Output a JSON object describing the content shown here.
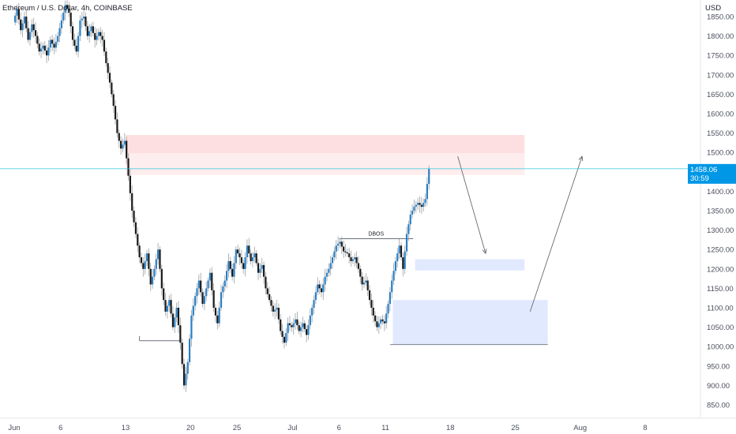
{
  "chart_data": {
    "type": "candlestick",
    "title": "Ethereum / U.S. Dollar, 4h, COINBASE",
    "y_unit": "USD",
    "ylim": [
      825,
      1875
    ],
    "y_ticks": [
      1850,
      1800,
      1750,
      1700,
      1650,
      1600,
      1550,
      1500,
      1450,
      1400,
      1350,
      1300,
      1250,
      1200,
      1150,
      1100,
      1050,
      1000,
      950,
      900,
      850
    ],
    "y_tick_labels": [
      "1850.00",
      "1800.00",
      "1750.00",
      "1700.00",
      "1650.00",
      "1600.00",
      "1550.00",
      "1500.00",
      "1450.00",
      "1400.00",
      "1350.00",
      "1300.00",
      "1250.00",
      "1200.00",
      "1150.00",
      "1100.00",
      "1050.00",
      "1000.00",
      "950.00",
      "900.00",
      "850.00"
    ],
    "x_ticks": [
      {
        "label": "Jun",
        "day": 0
      },
      {
        "label": "6",
        "day": 5
      },
      {
        "label": "13",
        "day": 12
      },
      {
        "label": "20",
        "day": 19
      },
      {
        "label": "25",
        "day": 24
      },
      {
        "label": "Jul",
        "day": 30
      },
      {
        "label": "6",
        "day": 35
      },
      {
        "label": "11",
        "day": 40
      },
      {
        "label": "18",
        "day": 47
      },
      {
        "label": "25",
        "day": 54
      },
      {
        "label": "Aug",
        "day": 61
      },
      {
        "label": "8",
        "day": 68
      }
    ],
    "last_price": {
      "value": "1458.06",
      "countdown": "30:59",
      "price": 1458.06
    },
    "colors": {
      "up": "#2a7fc4",
      "down": "#1a1a1a",
      "wick": "#9aa0a6",
      "price_line": "#26c6da",
      "price_tag": "#0097e6"
    },
    "price_path": [
      [
        0.0,
        1835
      ],
      [
        0.4,
        1870
      ],
      [
        0.8,
        1815
      ],
      [
        1.2,
        1850
      ],
      [
        1.6,
        1790
      ],
      [
        2.0,
        1830
      ],
      [
        2.4,
        1800
      ],
      [
        2.8,
        1760
      ],
      [
        3.2,
        1775
      ],
      [
        3.6,
        1750
      ],
      [
        4.0,
        1790
      ],
      [
        4.4,
        1770
      ],
      [
        4.8,
        1800
      ],
      [
        5.2,
        1840
      ],
      [
        5.6,
        1880
      ],
      [
        6.0,
        1860
      ],
      [
        6.4,
        1790
      ],
      [
        6.8,
        1760
      ],
      [
        7.2,
        1840
      ],
      [
        7.6,
        1850
      ],
      [
        8.0,
        1800
      ],
      [
        8.4,
        1825
      ],
      [
        8.8,
        1790
      ],
      [
        9.2,
        1810
      ],
      [
        9.6,
        1790
      ],
      [
        10.0,
        1730
      ],
      [
        10.4,
        1680
      ],
      [
        10.8,
        1620
      ],
      [
        11.2,
        1550
      ],
      [
        11.6,
        1510
      ],
      [
        12.0,
        1530
      ],
      [
        12.4,
        1440
      ],
      [
        12.8,
        1350
      ],
      [
        13.2,
        1290
      ],
      [
        13.6,
        1230
      ],
      [
        14.0,
        1200
      ],
      [
        14.4,
        1240
      ],
      [
        14.8,
        1160
      ],
      [
        15.2,
        1200
      ],
      [
        15.6,
        1250
      ],
      [
        16.0,
        1150
      ],
      [
        16.4,
        1090
      ],
      [
        16.8,
        1120
      ],
      [
        17.2,
        1050
      ],
      [
        17.6,
        1100
      ],
      [
        18.0,
        1010
      ],
      [
        18.4,
        900
      ],
      [
        18.8,
        960
      ],
      [
        19.2,
        1080
      ],
      [
        19.6,
        1130
      ],
      [
        20.0,
        1170
      ],
      [
        20.4,
        1110
      ],
      [
        20.8,
        1150
      ],
      [
        21.2,
        1190
      ],
      [
        21.6,
        1100
      ],
      [
        22.0,
        1060
      ],
      [
        22.4,
        1140
      ],
      [
        22.8,
        1170
      ],
      [
        23.2,
        1220
      ],
      [
        23.6,
        1180
      ],
      [
        24.0,
        1250
      ],
      [
        24.4,
        1230
      ],
      [
        24.8,
        1200
      ],
      [
        25.2,
        1260
      ],
      [
        25.6,
        1220
      ],
      [
        26.0,
        1240
      ],
      [
        26.4,
        1190
      ],
      [
        26.8,
        1210
      ],
      [
        27.2,
        1150
      ],
      [
        27.6,
        1120
      ],
      [
        28.0,
        1090
      ],
      [
        28.4,
        1100
      ],
      [
        28.8,
        1040
      ],
      [
        29.2,
        1010
      ],
      [
        29.6,
        1060
      ],
      [
        30.0,
        1050
      ],
      [
        30.4,
        1070
      ],
      [
        30.8,
        1040
      ],
      [
        31.2,
        1060
      ],
      [
        31.6,
        1030
      ],
      [
        32.0,
        1080
      ],
      [
        32.4,
        1120
      ],
      [
        32.8,
        1160
      ],
      [
        33.2,
        1140
      ],
      [
        33.6,
        1180
      ],
      [
        34.0,
        1200
      ],
      [
        34.4,
        1230
      ],
      [
        34.8,
        1260
      ],
      [
        35.2,
        1270
      ],
      [
        35.6,
        1245
      ],
      [
        36.0,
        1240
      ],
      [
        36.4,
        1220
      ],
      [
        36.8,
        1230
      ],
      [
        37.2,
        1200
      ],
      [
        37.6,
        1160
      ],
      [
        38.0,
        1170
      ],
      [
        38.4,
        1120
      ],
      [
        38.8,
        1080
      ],
      [
        39.2,
        1050
      ],
      [
        39.6,
        1070
      ],
      [
        40.0,
        1060
      ],
      [
        40.4,
        1110
      ],
      [
        40.8,
        1170
      ],
      [
        41.2,
        1220
      ],
      [
        41.6,
        1260
      ],
      [
        42.0,
        1200
      ],
      [
        42.4,
        1290
      ],
      [
        42.8,
        1340
      ],
      [
        43.2,
        1360
      ],
      [
        43.6,
        1370
      ],
      [
        44.0,
        1360
      ],
      [
        44.4,
        1380
      ],
      [
        44.8,
        1458
      ]
    ],
    "annotations": {
      "dbos_label": "DBOS",
      "supply_zone": {
        "day_start": 12.0,
        "day_end": 55.0,
        "price_top": 1545,
        "price_bottom": 1442
      },
      "demand_zone_upper": {
        "day_start": 43.2,
        "day_end": 55.0,
        "price_top": 1225,
        "price_bottom": 1196
      },
      "demand_zone_lower": {
        "day_start": 40.8,
        "day_end": 57.5,
        "price_top": 1120,
        "price_bottom": 1005
      },
      "dbos_line": {
        "day_start": 35.0,
        "day_end": 43.0,
        "price": 1278
      },
      "low_line_left": {
        "day_start": 13.5,
        "day_end": 18.0,
        "price": 1015
      },
      "low_line_right": {
        "day_start": 40.5,
        "day_end": 57.5,
        "price": 1005
      },
      "arrow_down": {
        "from": [
          47.8,
          1490
        ],
        "to": [
          50.8,
          1240
        ]
      },
      "arrow_up": {
        "from": [
          55.6,
          1090
        ],
        "to": [
          61.2,
          1490
        ]
      }
    }
  }
}
